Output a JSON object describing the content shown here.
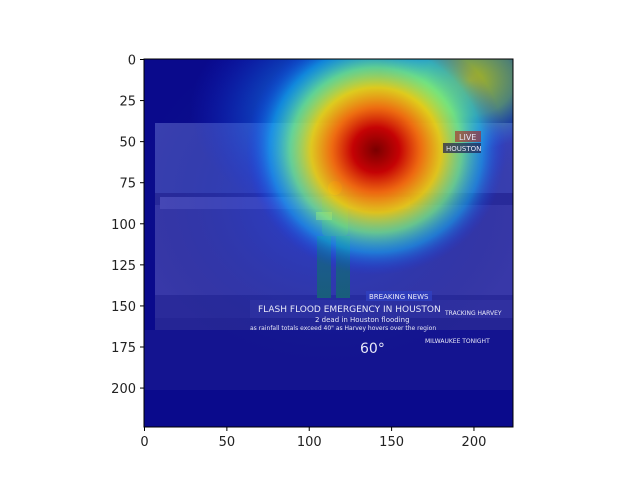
{
  "chart_data": {
    "type": "heatmap",
    "description_kind": "class-activation heatmap overlaid on a news broadcast frame",
    "title": "",
    "xlabel": "",
    "ylabel": "",
    "xlim": [
      0,
      224
    ],
    "ylim": [
      224,
      0
    ],
    "x_ticks": [
      0,
      50,
      100,
      150,
      200
    ],
    "y_ticks": [
      0,
      25,
      50,
      75,
      100,
      125,
      150,
      175,
      200
    ],
    "colormap": "jet",
    "grid": false,
    "hotspot": {
      "x_center": 140,
      "y_center": 55,
      "peak": "dark red"
    },
    "image_text": {
      "live_badge": "LIVE",
      "location_badge": "HOUSTON",
      "breaking_banner": "BREAKING NEWS",
      "headline": "FLASH FLOOD EMERGENCY IN HOUSTON",
      "subheadline": "2 dead in Houston flooding",
      "ticker": "as rainfall totals exceed 40\" as Harvey hovers over the region",
      "brand_label": "MILWAUKEE TONIGHT",
      "temperature": "60°",
      "tracking_label": "TRACKING HARVEY"
    }
  },
  "colors": {
    "axis": "#000000",
    "background": "#ffffff",
    "cold": "#00007f",
    "hot": "#8b0000"
  }
}
